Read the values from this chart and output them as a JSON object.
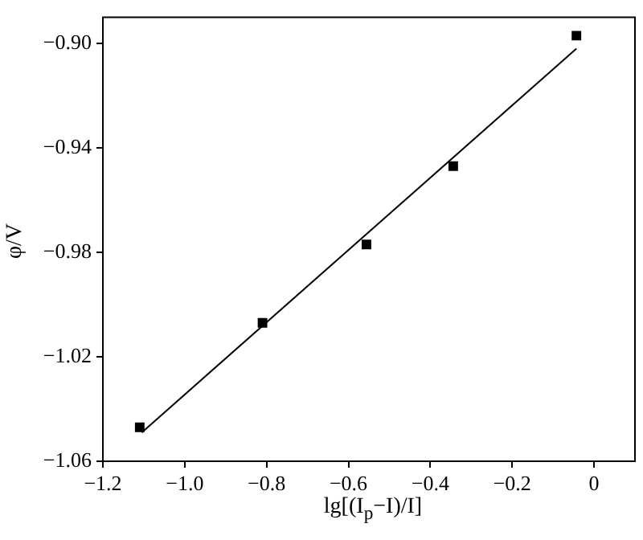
{
  "chart_data": {
    "type": "scatter",
    "xlabel": "lg[(I$_{p}$−I)/I]",
    "ylabel": "φ/V",
    "xlim": [
      -1.2,
      0.1
    ],
    "xticks": [
      {
        "value": -1.2,
        "label": "−1.2"
      },
      {
        "value": -1.0,
        "label": "−1.0"
      },
      {
        "value": -0.8,
        "label": "−0.8"
      },
      {
        "value": -0.6,
        "label": "−0.6"
      },
      {
        "value": -0.4,
        "label": "−0.4"
      },
      {
        "value": -0.2,
        "label": "−0.2"
      },
      0
    ],
    "ylim": [
      -1.06,
      -0.89
    ],
    "yticks": [
      {
        "value": -1.06,
        "label": "−1.06"
      },
      {
        "value": -1.02,
        "label": "−1.02"
      },
      {
        "value": -0.98,
        "label": "−0.98"
      },
      {
        "value": -0.94,
        "label": "−0.94"
      },
      {
        "value": -0.9,
        "label": "−0.90"
      }
    ],
    "grid": false,
    "legend": false,
    "marker": "square",
    "series": [
      {
        "color": "#000000",
        "x": [
          -1.11,
          -0.81,
          -0.556,
          -0.344,
          -0.043
        ],
        "values": [
          -1.047,
          -1.007,
          -0.977,
          -0.947,
          -0.897
        ]
      },
      {
        "type": "line",
        "color": "#000000",
        "marker": "none",
        "x": [
          -1.105,
          -0.043
        ],
        "values": [
          -1.049,
          -0.902
        ]
      }
    ]
  }
}
